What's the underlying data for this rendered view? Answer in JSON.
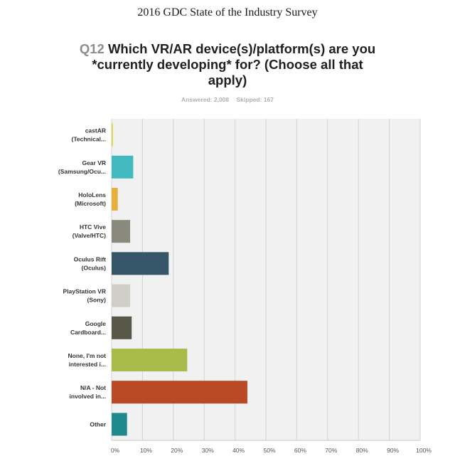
{
  "header": {
    "title": "2016 GDC State of the Industry Survey"
  },
  "question": {
    "number": "Q12",
    "text": "Which VR/AR device(s)/platform(s) are you *currently developing* for? (Choose all that apply)"
  },
  "meta": {
    "answered": "Answered: 2,008",
    "skipped": "Skipped: 167"
  },
  "chart_data": {
    "type": "bar",
    "orientation": "horizontal",
    "categories": [
      [
        "castAR",
        "(Technical..."
      ],
      [
        "Gear VR",
        "(Samsung/Ocu..."
      ],
      [
        "HoloLens",
        "(Microsoft)"
      ],
      [
        "HTC Vive",
        "(Valve/HTC)"
      ],
      [
        "Oculus Rift",
        "(Oculus)"
      ],
      [
        "PlayStation VR",
        "(Sony)"
      ],
      [
        "Google",
        "Cardboard..."
      ],
      [
        "None, I'm not",
        "interested i..."
      ],
      [
        "N/A - Not",
        "involved in..."
      ],
      [
        "Other"
      ]
    ],
    "values": [
      0.4,
      7,
      2,
      6,
      18.5,
      6,
      6.5,
      24.5,
      44,
      5
    ],
    "colors": [
      "#d7d637",
      "#42b8bf",
      "#e7b03c",
      "#8a897e",
      "#345668",
      "#cfcfc7",
      "#585849",
      "#a9bb4a",
      "#b94a25",
      "#1f8a8e"
    ],
    "xticks": [
      "0%",
      "10%",
      "20%",
      "30%",
      "40%",
      "50%",
      "60%",
      "70%",
      "80%",
      "90%",
      "100%"
    ],
    "xlim": [
      0,
      100
    ],
    "grid": true
  }
}
